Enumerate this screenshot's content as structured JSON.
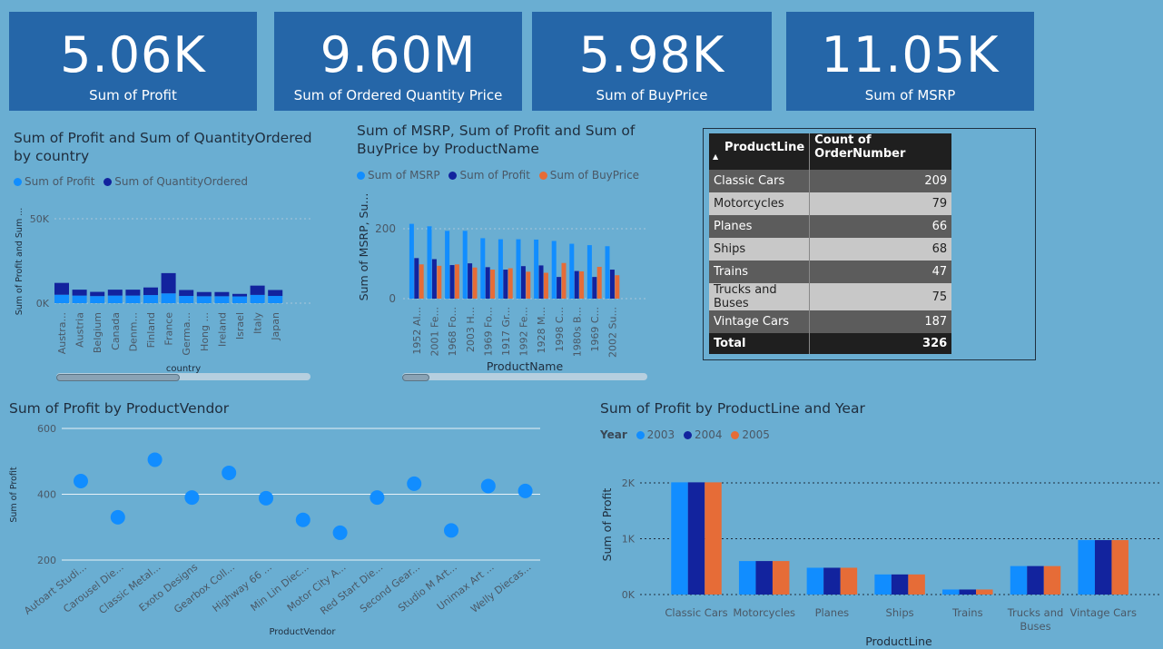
{
  "cards": [
    {
      "value": "5.06K",
      "label": "Sum of Profit"
    },
    {
      "value": "9.60M",
      "label": "Sum of Ordered Quantity Price"
    },
    {
      "value": "5.98K",
      "label": "Sum of BuyPrice"
    },
    {
      "value": "11.05K",
      "label": "Sum of MSRP"
    }
  ],
  "colors": {
    "light": "#118dff",
    "dark": "#12239e",
    "orange": "#e66c37"
  },
  "table": {
    "headers": [
      "ProductLine",
      "Count of OrderNumber"
    ],
    "sort_indicator": "▲",
    "rows": [
      {
        "name": "Classic Cars",
        "count": "209"
      },
      {
        "name": "Motorcycles",
        "count": "79"
      },
      {
        "name": "Planes",
        "count": "66"
      },
      {
        "name": "Ships",
        "count": "68"
      },
      {
        "name": "Trains",
        "count": "47"
      },
      {
        "name": "Trucks and Buses",
        "count": "75"
      },
      {
        "name": "Vintage Cars",
        "count": "187"
      }
    ],
    "total": {
      "label": "Total",
      "count": "326"
    }
  },
  "chart_data": [
    {
      "type": "bar",
      "stacked": true,
      "title": "Sum of Profit and Sum of QuantityOrdered by country",
      "xlabel": "country",
      "ylabel": "Sum of Profit and Sum ...",
      "yticks": [
        "0K",
        "50K"
      ],
      "ylim": [
        0,
        60000
      ],
      "categories": [
        "Austra...",
        "Austria",
        "Belgium",
        "Canada",
        "Denm...",
        "Finland",
        "France",
        "Germa...",
        "Hong ...",
        "Ireland",
        "Israel",
        "Italy",
        "Japan"
      ],
      "series": [
        {
          "name": "Sum of Profit",
          "values": [
            5000,
            4500,
            4200,
            4500,
            4500,
            4800,
            5800,
            4300,
            4100,
            4100,
            4000,
            4900,
            4300
          ]
        },
        {
          "name": "Sum of QuantityOrdered",
          "values": [
            7000,
            3500,
            2500,
            3500,
            3500,
            4500,
            12000,
            3500,
            2500,
            2500,
            1500,
            5500,
            3500
          ]
        }
      ],
      "grid": true
    },
    {
      "type": "bar",
      "title": "Sum of MSRP, Sum of Profit and Sum of BuyPrice by ProductName",
      "xlabel": "ProductName",
      "ylabel": "Sum of MSRP, Su...",
      "yticks": [
        "0",
        "200"
      ],
      "ylim": [
        0,
        240
      ],
      "categories": [
        "1952 Al...",
        "2001 Fe...",
        "1968 Fo...",
        "2003 H...",
        "1969 Fo...",
        "1917 Gr...",
        "1992 Fe...",
        "1928 M...",
        "1998 C...",
        "1980s B...",
        "1969 C...",
        "2002 Su..."
      ],
      "series": [
        {
          "name": "Sum of MSRP",
          "values": [
            214,
            207,
            194,
            194,
            173,
            170,
            170,
            169,
            165,
            157,
            153,
            150
          ]
        },
        {
          "name": "Sum of Profit",
          "values": [
            116,
            113,
            96,
            101,
            90,
            83,
            93,
            95,
            62,
            79,
            62,
            83
          ]
        },
        {
          "name": "Sum of BuyPrice",
          "values": [
            98,
            94,
            98,
            89,
            83,
            87,
            77,
            74,
            102,
            78,
            91,
            67
          ]
        }
      ],
      "grid": true
    },
    {
      "type": "scatter",
      "title": "Sum of Profit by ProductVendor",
      "xlabel": "ProductVendor",
      "ylabel": "Sum of Profit",
      "yticks": [
        "200",
        "400",
        "600"
      ],
      "ylim": [
        180,
        620
      ],
      "categories": [
        "Autoart Studi...",
        "Carousel Die...",
        "Classic Metal...",
        "Exoto Designs",
        "Gearbox Coll...",
        "Highway 66 ...",
        "Min Lin Diec...",
        "Motor City A...",
        "Red Start Die...",
        "Second Gear...",
        "Studio M Art...",
        "Unimax Art ...",
        "Welly Diecas..."
      ],
      "values": [
        440,
        330,
        505,
        390,
        465,
        388,
        322,
        283,
        390,
        432,
        290,
        425,
        410
      ],
      "grid": true
    },
    {
      "type": "bar",
      "title": "Sum of Profit by ProductLine and Year",
      "legend_title": "Year",
      "xlabel": "ProductLine",
      "ylabel": "Sum of Profit",
      "yticks": [
        "0K",
        "1K",
        "2K"
      ],
      "ylim": [
        0,
        2000
      ],
      "categories": [
        "Classic Cars",
        "Motorcycles",
        "Planes",
        "Ships",
        "Trains",
        "Trucks and Buses",
        "Vintage Cars"
      ],
      "series": [
        {
          "name": "2003",
          "values": [
            2010,
            600,
            480,
            360,
            90,
            510,
            975
          ]
        },
        {
          "name": "2004",
          "values": [
            2010,
            600,
            480,
            360,
            90,
            510,
            975
          ]
        },
        {
          "name": "2005",
          "values": [
            2010,
            600,
            480,
            360,
            90,
            510,
            975
          ]
        }
      ],
      "grid": true
    }
  ]
}
